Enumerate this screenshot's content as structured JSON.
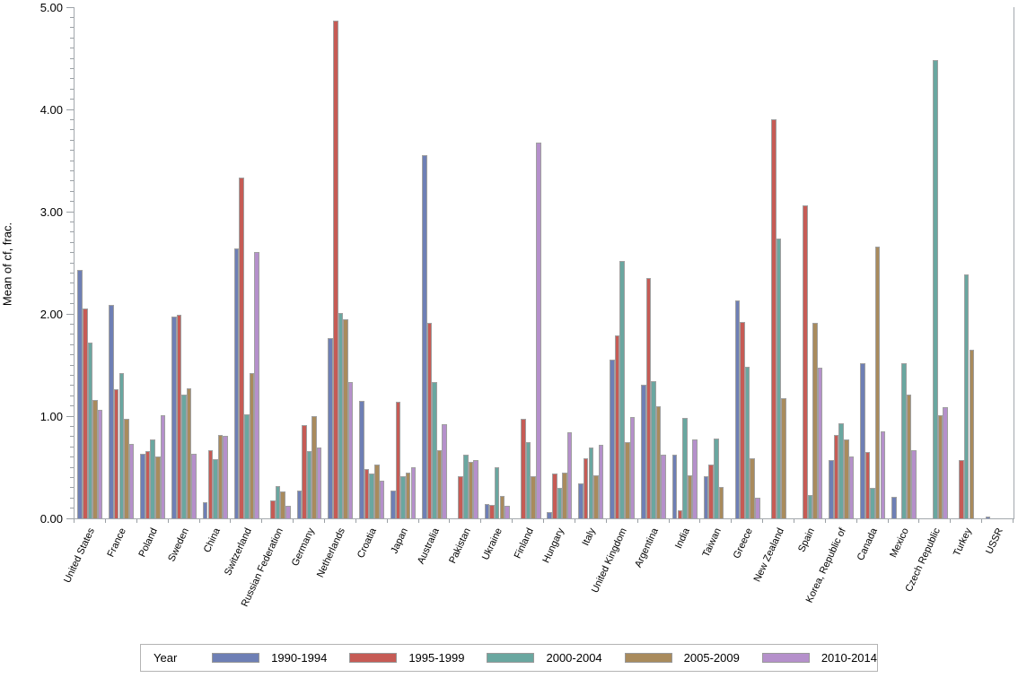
{
  "chart_data": {
    "type": "bar",
    "title": "",
    "xlabel": "",
    "ylabel": "Mean of cf, frac.",
    "ylim": [
      0,
      5
    ],
    "ytick_labels": [
      "0.00",
      "1.00",
      "2.00",
      "3.00",
      "4.00",
      "5.00"
    ],
    "minor_tick_step": 0.1,
    "grid": false,
    "legend_title": "Year",
    "legend_position": "bottom",
    "categories": [
      "United States",
      "France",
      "Poland",
      "Sweden",
      "China",
      "Switzerland",
      "Russian Federation",
      "Germany",
      "Netherlands",
      "Croatia",
      "Japan",
      "Australia",
      "Pakistan",
      "Ukraine",
      "Finland",
      "Hungary",
      "Italy",
      "United Kingdom",
      "Argentina",
      "India",
      "Taiwan",
      "Greece",
      "New Zealand",
      "Spain",
      "Korea, Republic of",
      "Canada",
      "Mexico",
      "Czech Republic",
      "Turkey",
      "USSR"
    ],
    "series": [
      {
        "name": "1990-1994",
        "color": "#6e7fb5",
        "values": [
          2.43,
          2.09,
          0.63,
          1.97,
          0.16,
          2.64,
          null,
          0.27,
          1.76,
          1.15,
          0.27,
          3.55,
          null,
          0.14,
          null,
          0.06,
          0.34,
          1.55,
          1.31,
          0.62,
          0.41,
          2.13,
          null,
          null,
          0.57,
          1.52,
          0.21,
          null,
          null,
          0.02
        ]
      },
      {
        "name": "1995-1999",
        "color": "#c65b55",
        "values": [
          2.05,
          1.26,
          0.66,
          1.99,
          0.67,
          3.33,
          0.18,
          0.91,
          4.87,
          0.48,
          1.14,
          1.91,
          0.41,
          0.13,
          0.97,
          0.44,
          0.59,
          1.79,
          2.35,
          0.08,
          0.53,
          1.92,
          3.9,
          3.06,
          0.82,
          0.65,
          null,
          null,
          0.57,
          null
        ]
      },
      {
        "name": "2000-2004",
        "color": "#6aa7a0",
        "values": [
          1.72,
          1.42,
          0.77,
          1.21,
          0.58,
          1.02,
          0.32,
          0.66,
          2.01,
          0.44,
          0.41,
          1.33,
          0.62,
          0.5,
          0.75,
          0.3,
          0.69,
          2.52,
          1.34,
          0.98,
          0.78,
          1.48,
          2.74,
          0.23,
          0.93,
          0.3,
          1.52,
          4.48,
          2.39,
          null
        ]
      },
      {
        "name": "2005-2009",
        "color": "#a98b5d",
        "values": [
          1.16,
          0.97,
          0.61,
          1.27,
          0.82,
          1.42,
          0.26,
          1.0,
          1.95,
          0.53,
          0.45,
          0.67,
          0.55,
          0.22,
          0.41,
          0.45,
          0.42,
          0.75,
          1.1,
          0.42,
          0.31,
          0.59,
          1.18,
          1.91,
          0.77,
          2.66,
          1.21,
          1.01,
          1.65,
          null
        ]
      },
      {
        "name": "2010-2014",
        "color": "#b590cb",
        "values": [
          1.06,
          0.73,
          1.01,
          0.63,
          0.81,
          2.61,
          0.12,
          0.69,
          1.33,
          0.37,
          0.5,
          0.92,
          0.57,
          0.12,
          3.68,
          0.84,
          0.72,
          0.99,
          0.62,
          0.77,
          null,
          0.2,
          null,
          1.47,
          0.61,
          0.85,
          0.67,
          1.09,
          null,
          null
        ]
      }
    ],
    "axis_color": "#a3a8ad",
    "bar_border_color": "#a0a0a0"
  }
}
